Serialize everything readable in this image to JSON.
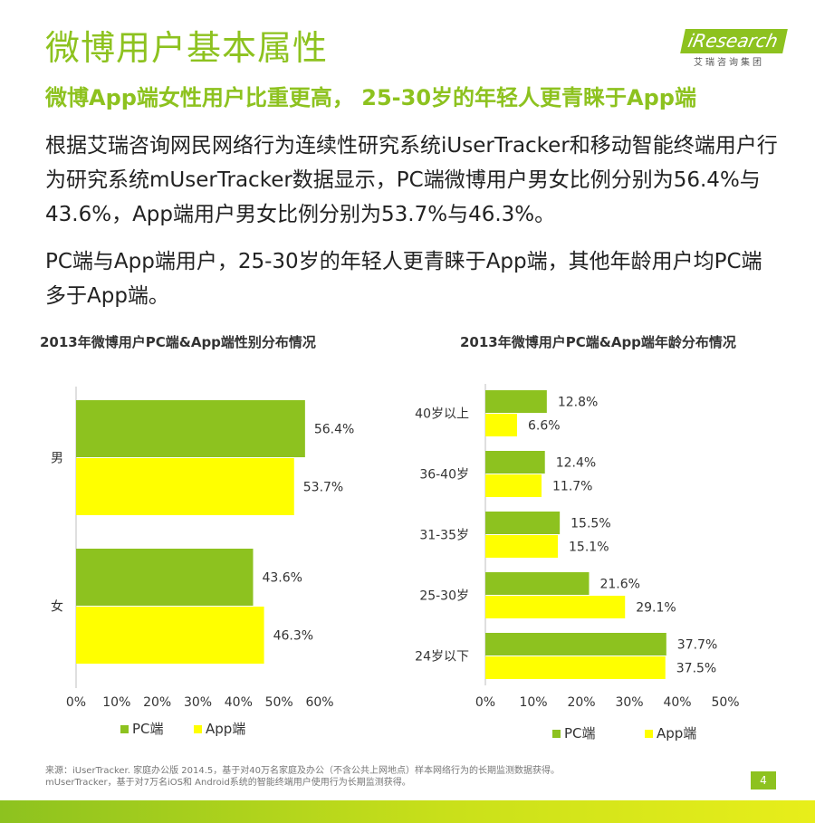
{
  "header": {
    "title": "微博用户基本属性",
    "subtitle": "微博App端女性用户比重更高， 25-30岁的年轻人更青睐于App端"
  },
  "logo": {
    "brand": "iResearch",
    "sub": "艾瑞咨询集团"
  },
  "body": {
    "p1": "根据艾瑞咨询网民网络行为连续性研究系统iUserTracker和移动智能终端用户行为研究系统mUserTracker数据显示，PC端微博用户男女比例分别为56.4%与43.6%，App端用户男女比例分别为53.7%与46.3%。",
    "p2": "PC端与App端用户，25-30岁的年轻人更青睐于App端，其他年龄用户均PC端多于App端。"
  },
  "colors": {
    "pc": "#8dc21f",
    "app": "#ffff00",
    "accent": "#8dc21f"
  },
  "chart_data": [
    {
      "type": "bar",
      "orientation": "horizontal",
      "title": "2013年微博用户PC端&App端性别分布情况",
      "categories": [
        "男",
        "女"
      ],
      "series": [
        {
          "name": "PC端",
          "values": [
            56.4,
            43.6
          ]
        },
        {
          "name": "App端",
          "values": [
            53.7,
            46.3
          ]
        }
      ],
      "data_labels": [
        [
          "56.4%",
          "43.6%"
        ],
        [
          "53.7%",
          "46.3%"
        ]
      ],
      "xlim": [
        0,
        60
      ],
      "xticks": [
        "0%",
        "10%",
        "20%",
        "30%",
        "40%",
        "50%",
        "60%"
      ],
      "legend": "bottom",
      "grid": false
    },
    {
      "type": "bar",
      "orientation": "horizontal",
      "title": "2013年微博用户PC端&App端年龄分布情况",
      "categories": [
        "40岁以上",
        "36-40岁",
        "31-35岁",
        "25-30岁",
        "24岁以下"
      ],
      "series": [
        {
          "name": "PC端",
          "values": [
            12.8,
            12.4,
            15.5,
            21.6,
            37.7
          ]
        },
        {
          "name": "App端",
          "values": [
            6.6,
            11.7,
            15.1,
            29.1,
            37.5
          ]
        }
      ],
      "data_labels": [
        [
          "12.8%",
          "12.4%",
          "15.5%",
          "21.6%",
          "37.7%"
        ],
        [
          "6.6%",
          "11.7%",
          "15.1%",
          "29.1%",
          "37.5%"
        ]
      ],
      "xlim": [
        0,
        50
      ],
      "xticks": [
        "0%",
        "10%",
        "20%",
        "30%",
        "40%",
        "50%"
      ],
      "legend": "bottom",
      "grid": false
    }
  ],
  "footer": {
    "source_line1": "来源：iUserTracker. 家庭办公版 2014.5，基于对40万名家庭及办公（不含公共上网地点）样本网络行为的长期监测数据获得。",
    "source_line2": "mUserTracker，基于对7万名iOS和 Android系统的智能终端用户使用行为长期监测获得。",
    "page_number": "4"
  }
}
